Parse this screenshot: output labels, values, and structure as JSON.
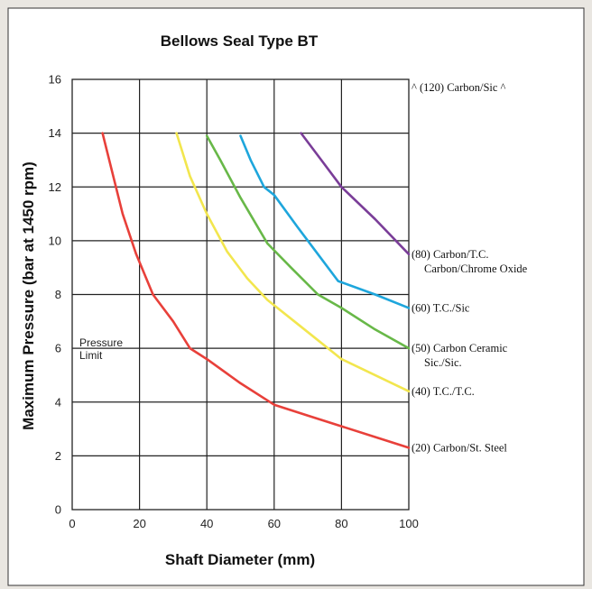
{
  "chart_data": {
    "type": "line",
    "title": "Bellows Seal Type BT",
    "xlabel": "Shaft Diameter (mm)",
    "ylabel": "Maximum Pressure (bar at 1450 rpm)",
    "xlim": [
      0,
      100
    ],
    "ylim": [
      0,
      16
    ],
    "xticks": [
      "0",
      "20",
      "40",
      "60",
      "80",
      "100"
    ],
    "yticks": [
      "0",
      "2",
      "4",
      "6",
      "8",
      "10",
      "12",
      "14",
      "16"
    ],
    "grid": true,
    "annotations": [
      {
        "text_lines": [
          "Pressure",
          "Limit"
        ]
      }
    ],
    "series": [
      {
        "label_lines": [
          "(20) Carbon/St. Steel"
        ],
        "color": "#e8403a",
        "points": [
          [
            9,
            14
          ],
          [
            15,
            11
          ],
          [
            19,
            9.5
          ],
          [
            24,
            8
          ],
          [
            30,
            7
          ],
          [
            35,
            6
          ],
          [
            40,
            5.6
          ],
          [
            50,
            4.7
          ],
          [
            60,
            3.9
          ],
          [
            70,
            3.5
          ],
          [
            80,
            3.1
          ],
          [
            90,
            2.7
          ],
          [
            100,
            2.3
          ]
        ]
      },
      {
        "label_lines": [
          "(40) T.C./T.C."
        ],
        "color": "#f2e64e",
        "points": [
          [
            31,
            14
          ],
          [
            35,
            12.4
          ],
          [
            40,
            11
          ],
          [
            46,
            9.6
          ],
          [
            52,
            8.6
          ],
          [
            58,
            7.8
          ],
          [
            66,
            7
          ],
          [
            73,
            6.3
          ],
          [
            80,
            5.6
          ],
          [
            90,
            5
          ],
          [
            100,
            4.4
          ]
        ]
      },
      {
        "label_lines": [
          "(50) Carbon Ceramic",
          "Sic./Sic."
        ],
        "color": "#68b848",
        "points": [
          [
            40,
            13.9
          ],
          [
            44,
            13
          ],
          [
            50,
            11.6
          ],
          [
            58,
            9.9
          ],
          [
            65,
            9
          ],
          [
            73,
            8
          ],
          [
            80,
            7.5
          ],
          [
            90,
            6.7
          ],
          [
            100,
            6
          ]
        ]
      },
      {
        "label_lines": [
          "(60) T.C./Sic"
        ],
        "color": "#1ea6dc",
        "points": [
          [
            50,
            13.9
          ],
          [
            53,
            13
          ],
          [
            57,
            12
          ],
          [
            60,
            11.7
          ],
          [
            67,
            10.5
          ],
          [
            73,
            9.5
          ],
          [
            79,
            8.5
          ],
          [
            90,
            8
          ],
          [
            100,
            7.5
          ]
        ]
      },
      {
        "label_lines": [
          "(80) Carbon/T.C.",
          "Carbon/Chrome Oxide"
        ],
        "color": "#7a3d98",
        "points": [
          [
            68,
            14
          ],
          [
            74,
            13
          ],
          [
            80,
            12
          ],
          [
            90,
            10.8
          ],
          [
            100,
            9.5
          ]
        ]
      },
      {
        "label_lines": [
          "^ (120) Carbon/Sic ^"
        ],
        "color": "#111111",
        "points": []
      }
    ]
  }
}
